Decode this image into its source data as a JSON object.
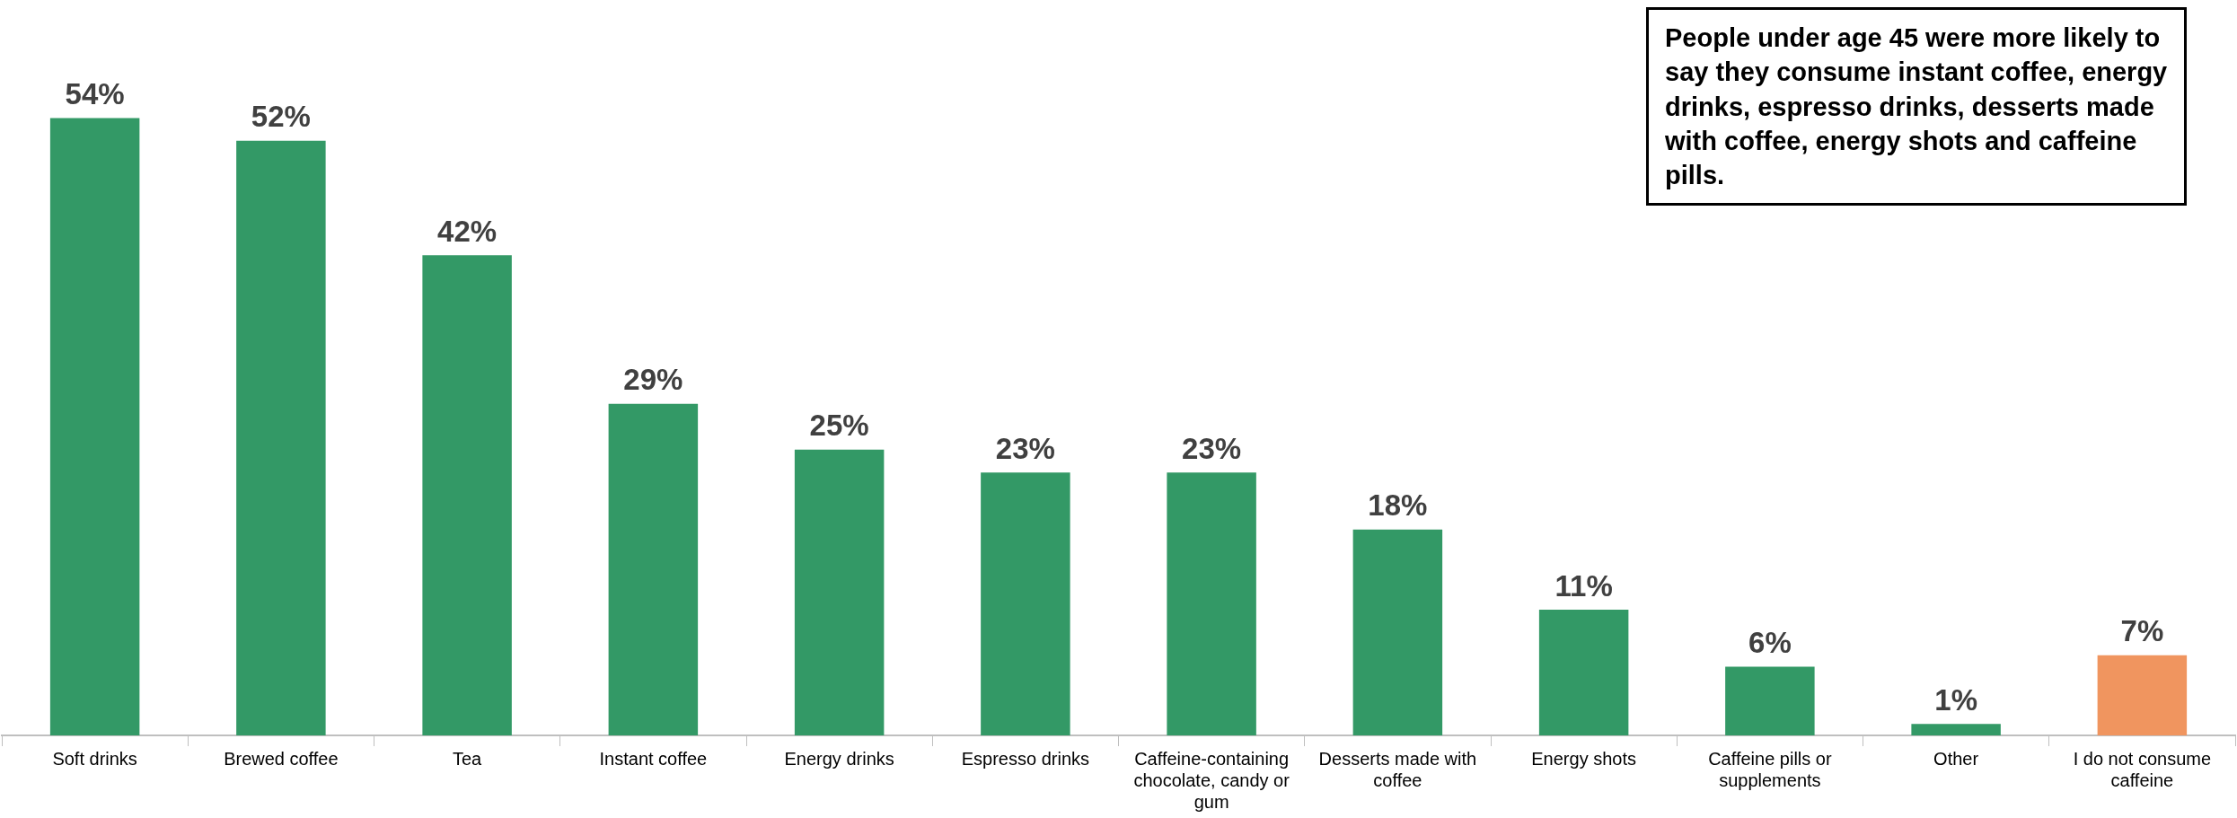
{
  "chart_data": {
    "type": "bar",
    "categories": [
      "Soft drinks",
      "Brewed coffee",
      "Tea",
      "Instant coffee",
      "Energy drinks",
      "Espresso drinks",
      "Caffeine-containing chocolate, candy or gum",
      "Desserts made with coffee",
      "Energy shots",
      "Caffeine pills or supplements",
      "Other",
      "I do not consume caffeine"
    ],
    "values": [
      54,
      52,
      42,
      29,
      25,
      23,
      23,
      18,
      11,
      6,
      1,
      7
    ],
    "value_labels": [
      "54%",
      "52%",
      "42%",
      "29%",
      "25%",
      "23%",
      "23%",
      "18%",
      "11%",
      "6%",
      "1%",
      "7%"
    ],
    "colors": [
      "#339966",
      "#339966",
      "#339966",
      "#339966",
      "#339966",
      "#339966",
      "#339966",
      "#339966",
      "#339966",
      "#339966",
      "#339966",
      "#f0955f"
    ],
    "annotations": [
      "People under age 45 were more likely to say they consume instant coffee, energy drinks, espresso drinks, desserts made with coffee, energy shots and caffeine pills."
    ],
    "grid": false,
    "legend": false
  }
}
